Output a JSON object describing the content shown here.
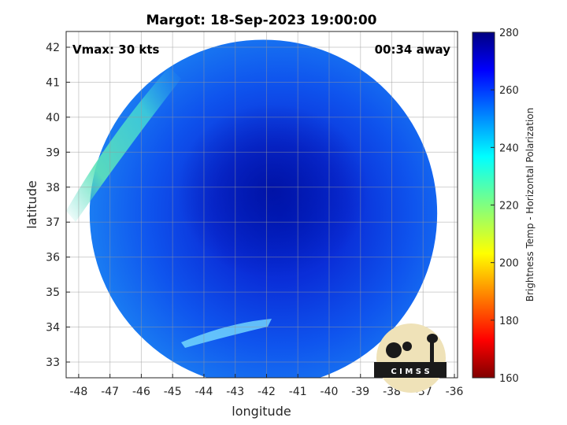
{
  "chart_data": {
    "type": "heatmap",
    "title": "Margot: 18-Sep-2023 19:00:00",
    "xlabel": "longitude",
    "ylabel": "latitude",
    "xlim": [
      -48.4,
      -35.9
    ],
    "ylim": [
      32.55,
      42.45
    ],
    "xticks": [
      -48,
      -47,
      -46,
      -45,
      -44,
      -43,
      -42,
      -41,
      -40,
      -39,
      -38,
      -37,
      -36
    ],
    "yticks": [
      33,
      34,
      35,
      36,
      37,
      38,
      39,
      40,
      41,
      42
    ],
    "grid": true,
    "annotations": {
      "left": "Vmax: 30 kts",
      "right": "00:34 away"
    },
    "swath": {
      "center_lon": -42.1,
      "center_lat": 37.25,
      "radius_deg": 5.55
    },
    "colorbar": {
      "label": "Brightness Temp - Horizontal Polarization",
      "min": 160,
      "max": 280,
      "ticks": [
        160,
        180,
        200,
        220,
        240,
        260,
        280
      ],
      "colormap": "jet"
    },
    "logo": {
      "text": "C I M S S"
    }
  }
}
